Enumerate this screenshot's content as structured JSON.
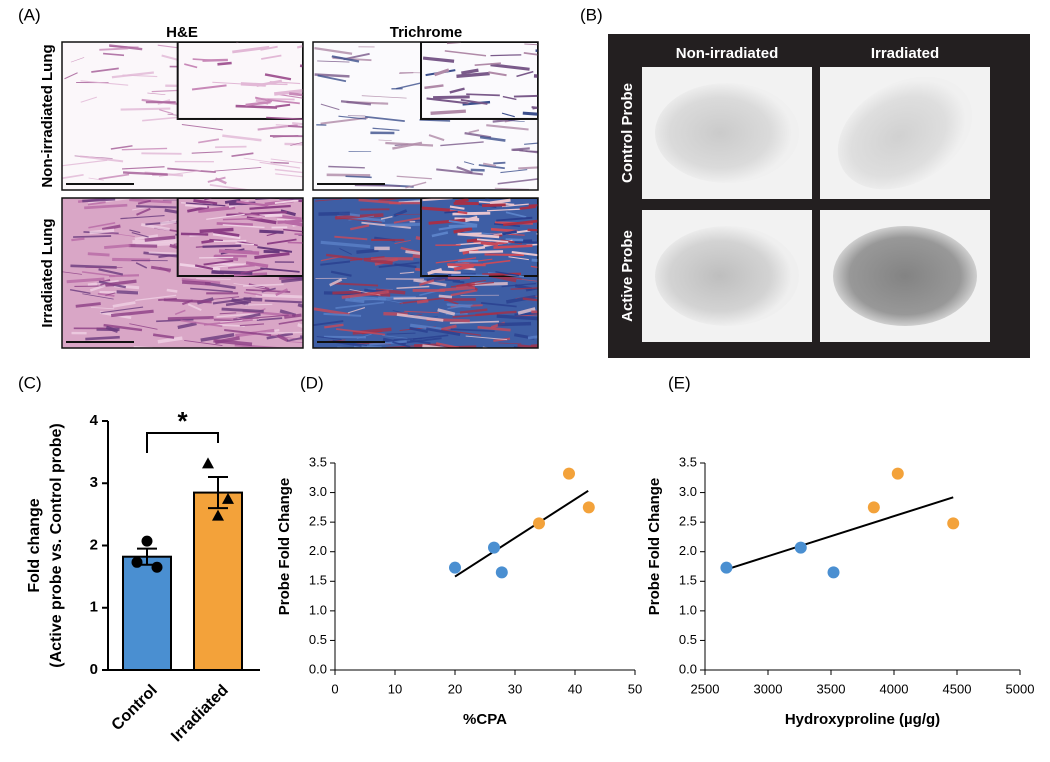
{
  "panel_labels": [
    "(A)",
    "(B)",
    "(C)",
    "(D)",
    "(E)"
  ],
  "histology": {
    "columns": [
      "H&E",
      "Trichrome"
    ],
    "rows": [
      "Non-irradiated Lung",
      "Irradiated Lung"
    ]
  },
  "imaging": {
    "columns": [
      "Non-irradiated",
      "Irradiated"
    ],
    "rows": [
      "Control Probe",
      "Active Probe"
    ]
  },
  "chart_data": [
    {
      "type": "bar",
      "categories": [
        "Control",
        "Irradiated"
      ],
      "values": [
        1.82,
        2.85
      ],
      "errors": [
        0.13,
        0.25
      ],
      "colors": [
        "#4a8fd1",
        "#f3a23a"
      ],
      "points": [
        [
          2.07,
          1.73,
          1.65
        ],
        [
          2.48,
          3.32,
          2.75
        ]
      ],
      "markers": [
        "circle",
        "triangle"
      ],
      "ylabel": [
        "Fold change",
        "(Active probe vs. Control probe)"
      ],
      "annotation": "*",
      "ylim": [
        0,
        4
      ],
      "yticks": [
        0,
        1,
        2,
        3,
        4
      ]
    },
    {
      "type": "scatter",
      "xlabel": "%CPA",
      "ylabel": "Probe Fold Change",
      "series": [
        {
          "color": "#4a8fd1",
          "x": [
            20,
            26.5,
            27.8
          ],
          "values": [
            1.73,
            2.07,
            1.65
          ]
        },
        {
          "color": "#f3a23a",
          "x": [
            34,
            39,
            42.3
          ],
          "values": [
            2.48,
            3.32,
            2.75
          ]
        }
      ],
      "trendline": {
        "x": [
          20,
          42.2
        ],
        "values": [
          1.58,
          3.03
        ]
      },
      "xlim": [
        0,
        50
      ],
      "xticks": [
        0,
        10,
        20,
        30,
        40,
        50
      ],
      "ylim": [
        0,
        3.5
      ],
      "yticks": [
        {
          "value": 0,
          "label": "0.0"
        },
        {
          "value": 0.5,
          "label": "0.5"
        },
        {
          "value": 1,
          "label": "1.0"
        },
        {
          "value": 1.5,
          "label": "1.5"
        },
        {
          "value": 2,
          "label": "2.0"
        },
        {
          "value": 2.5,
          "label": "2.5"
        },
        {
          "value": 3,
          "label": "3.0"
        },
        {
          "value": 3.5,
          "label": "3.5"
        }
      ]
    },
    {
      "type": "scatter",
      "xlabel": "Hydroxyproline (µg/g)",
      "ylabel": "Probe Fold Change",
      "series": [
        {
          "color": "#4a8fd1",
          "x": [
            2670,
            3260,
            3520
          ],
          "values": [
            1.73,
            2.07,
            1.65
          ]
        },
        {
          "color": "#f3a23a",
          "x": [
            3840,
            4030,
            4470
          ],
          "values": [
            2.75,
            3.32,
            2.48
          ]
        }
      ],
      "trendline": {
        "x": [
          2670,
          4470
        ],
        "values": [
          1.7,
          2.92
        ]
      },
      "xlim": [
        2500,
        5000
      ],
      "xticks": [
        2500,
        3000,
        3500,
        4000,
        4500,
        5000
      ],
      "ylim": [
        0,
        3.5
      ],
      "yticks": [
        {
          "value": 0,
          "label": "0.0"
        },
        {
          "value": 0.5,
          "label": "0.5"
        },
        {
          "value": 1,
          "label": "1.0"
        },
        {
          "value": 1.5,
          "label": "1.5"
        },
        {
          "value": 2,
          "label": "2.0"
        },
        {
          "value": 2.5,
          "label": "2.5"
        },
        {
          "value": 3,
          "label": "3.0"
        },
        {
          "value": 3.5,
          "label": "3.5"
        }
      ]
    }
  ]
}
